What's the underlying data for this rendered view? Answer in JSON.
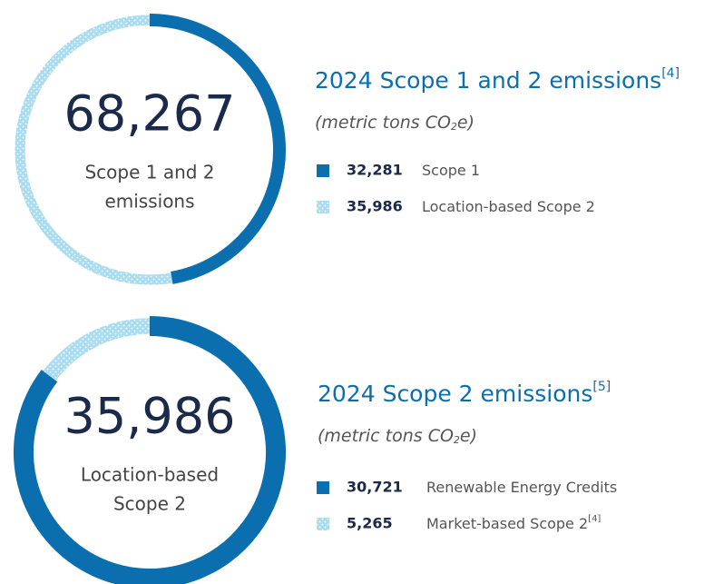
{
  "chart_data": [
    {
      "type": "donut",
      "title": "2024 Scope 1 and 2 emissions",
      "title_note": "[4]",
      "subtitle": [
        "(metric tons CO",
        "2",
        "e)"
      ],
      "center_value": "68,267",
      "center_label": [
        "Scope 1 and 2",
        "emissions"
      ],
      "series": [
        {
          "name": "Scope 1",
          "color": "#0b6faf",
          "values": [
            32281
          ],
          "value_labels": [
            "32,281"
          ]
        },
        {
          "name": "Location-based Scope 2",
          "color": "#a9dcf1",
          "values": [
            35986
          ],
          "value_labels": [
            "35,986"
          ]
        }
      ]
    },
    {
      "type": "donut",
      "title": "2024 Scope 2 emissions",
      "title_note": "[5]",
      "subtitle": [
        "(metric tons CO",
        "2",
        "e)"
      ],
      "center_value": "35,986",
      "center_label": [
        "Location-based",
        "Scope 2"
      ],
      "series": [
        {
          "name": "Renewable Energy Credits",
          "color": "#0b6faf",
          "values": [
            30721
          ],
          "value_labels": [
            "30,721"
          ]
        },
        {
          "name": "Market-based Scope 2",
          "note": "[4]",
          "color": "#a9dcf1",
          "values": [
            5265
          ],
          "value_labels": [
            "5,265"
          ]
        }
      ]
    }
  ]
}
